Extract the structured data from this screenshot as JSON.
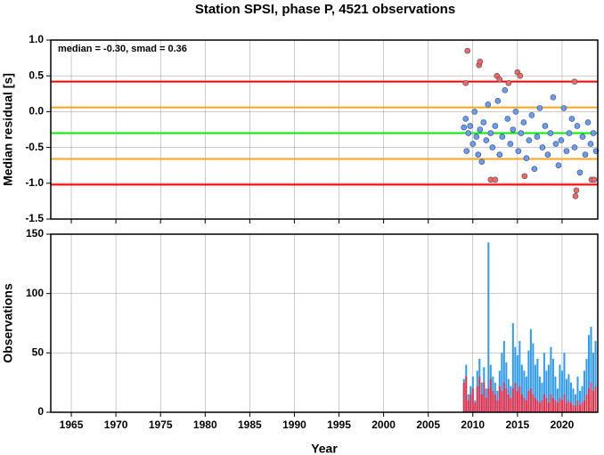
{
  "chart_data": [
    {
      "type": "scatter",
      "title": "Station SPSI, phase P, 4521 observations",
      "y_label": "Median residual [s]",
      "annotation": "median = -0.30, smad = 0.36",
      "xlim": [
        1962.7,
        2024.0
      ],
      "xticks": [
        1965,
        1970,
        1975,
        1980,
        1985,
        1990,
        1995,
        2000,
        2005,
        2010,
        2015,
        2020
      ],
      "ylim": [
        -1.5,
        1.0
      ],
      "yticks": [
        {
          "value": -1.5,
          "label": "-1.5"
        },
        {
          "value": -1.0,
          "label": "-1.0"
        },
        -0.5,
        {
          "value": 0.0,
          "label": "0.0"
        },
        0.5,
        {
          "value": 1.0,
          "label": "1.0"
        }
      ],
      "grid": true,
      "hlines": [
        {
          "value": 0.42,
          "color": "#ff0000"
        },
        {
          "value": 0.06,
          "color": "#f5a623"
        },
        {
          "value": -0.3,
          "color": "#00ee00"
        },
        {
          "value": -0.66,
          "color": "#f5a623"
        },
        {
          "value": -1.02,
          "color": "#ff0000"
        }
      ],
      "series": [
        {
          "color": "#6a9cf0",
          "x": [
            2009.0,
            2009.2,
            2009.3,
            2009.5,
            2009.7,
            2010.0,
            2010.2,
            2010.4,
            2010.6,
            2010.8,
            2011.0,
            2011.2,
            2011.5,
            2011.7,
            2012.0,
            2012.2,
            2012.5,
            2012.8,
            2013.0,
            2013.3,
            2013.6,
            2013.9,
            2014.2,
            2014.5,
            2014.8,
            2015.1,
            2015.4,
            2015.7,
            2016.0,
            2016.3,
            2016.6,
            2016.9,
            2017.2,
            2017.5,
            2017.8,
            2018.1,
            2018.4,
            2018.7,
            2019.0,
            2019.3,
            2019.6,
            2019.9,
            2020.2,
            2020.5,
            2020.8,
            2021.1,
            2021.4,
            2021.7,
            2022.0,
            2022.3,
            2022.6,
            2022.9,
            2023.2,
            2023.5,
            2023.8
          ],
          "values": [
            -0.22,
            -0.1,
            -0.55,
            -0.3,
            -0.2,
            -0.45,
            0.0,
            -0.35,
            -0.6,
            -0.25,
            -0.7,
            -0.15,
            -0.4,
            0.1,
            -0.3,
            -0.5,
            -0.2,
            0.15,
            -0.6,
            -0.35,
            0.3,
            -0.1,
            -0.45,
            -0.25,
            0.0,
            -0.55,
            -0.3,
            -0.15,
            -0.65,
            -0.4,
            -0.05,
            -0.8,
            -0.35,
            0.05,
            -0.5,
            -0.2,
            -0.6,
            -0.3,
            0.2,
            -0.45,
            -0.75,
            -0.4,
            0.05,
            -0.55,
            -0.3,
            -0.1,
            -0.5,
            -0.2,
            -0.85,
            -0.35,
            -0.6,
            -0.15,
            -0.45,
            -0.3,
            -0.55
          ]
        },
        {
          "color": "#f46a5a",
          "x": [
            2009.2,
            2009.4,
            2010.7,
            2010.8,
            2012.0,
            2012.5,
            2012.7,
            2013.0,
            2014.0,
            2015.0,
            2015.3,
            2015.8,
            2021.4,
            2021.6,
            2021.5,
            2023.3,
            2023.6
          ],
          "values": [
            0.4,
            0.85,
            0.65,
            0.7,
            -0.95,
            -0.95,
            0.5,
            0.45,
            0.4,
            0.55,
            0.5,
            -0.9,
            0.42,
            -1.1,
            -1.18,
            -0.95,
            -0.95
          ]
        }
      ]
    },
    {
      "type": "bar",
      "x_label": "Year",
      "y_label": "Observations",
      "xlim": [
        1962.7,
        2024.0
      ],
      "xticks": [
        1965,
        1970,
        1975,
        1980,
        1985,
        1990,
        1995,
        2000,
        2005,
        2010,
        2015,
        2020
      ],
      "ylim": [
        0,
        150
      ],
      "yticks": [
        0,
        50,
        100,
        150
      ],
      "grid": true,
      "x": [
        2009.0,
        2009.25,
        2009.5,
        2009.75,
        2010.0,
        2010.25,
        2010.5,
        2010.75,
        2011.0,
        2011.25,
        2011.5,
        2011.75,
        2012.0,
        2012.25,
        2012.5,
        2012.75,
        2013.0,
        2013.25,
        2013.5,
        2013.75,
        2014.0,
        2014.25,
        2014.5,
        2014.75,
        2015.0,
        2015.25,
        2015.5,
        2015.75,
        2016.0,
        2016.25,
        2016.5,
        2016.75,
        2017.0,
        2017.25,
        2017.5,
        2017.75,
        2018.0,
        2018.25,
        2018.5,
        2018.75,
        2019.0,
        2019.25,
        2019.5,
        2019.75,
        2020.0,
        2020.25,
        2020.5,
        2020.75,
        2021.0,
        2021.25,
        2021.5,
        2021.75,
        2022.0,
        2022.25,
        2022.5,
        2022.75,
        2023.0,
        2023.25,
        2023.5,
        2023.75
      ],
      "series": [
        {
          "color": "#2f9bf0",
          "values": [
            28,
            40,
            15,
            22,
            30,
            10,
            35,
            45,
            25,
            38,
            20,
            143,
            40,
            30,
            25,
            18,
            35,
            50,
            60,
            42,
            28,
            22,
            75,
            55,
            48,
            60,
            40,
            35,
            30,
            52,
            70,
            58,
            40,
            45,
            30,
            25,
            50,
            35,
            40,
            55,
            45,
            30,
            20,
            40,
            35,
            50,
            28,
            32,
            25,
            20,
            15,
            30,
            18,
            22,
            35,
            45,
            65,
            72,
            50,
            60
          ]
        },
        {
          "color": "#e8334a",
          "values": [
            25,
            30,
            10,
            15,
            20,
            8,
            22,
            30,
            15,
            25,
            12,
            20,
            28,
            18,
            15,
            10,
            22,
            18,
            25,
            20,
            15,
            12,
            20,
            25,
            18,
            22,
            15,
            12,
            10,
            18,
            20,
            15,
            12,
            10,
            8,
            10,
            15,
            12,
            8,
            15,
            12,
            10,
            8,
            12,
            10,
            15,
            8,
            10,
            8,
            6,
            5,
            10,
            6,
            8,
            10,
            15,
            20,
            25,
            18,
            22
          ]
        }
      ]
    }
  ]
}
